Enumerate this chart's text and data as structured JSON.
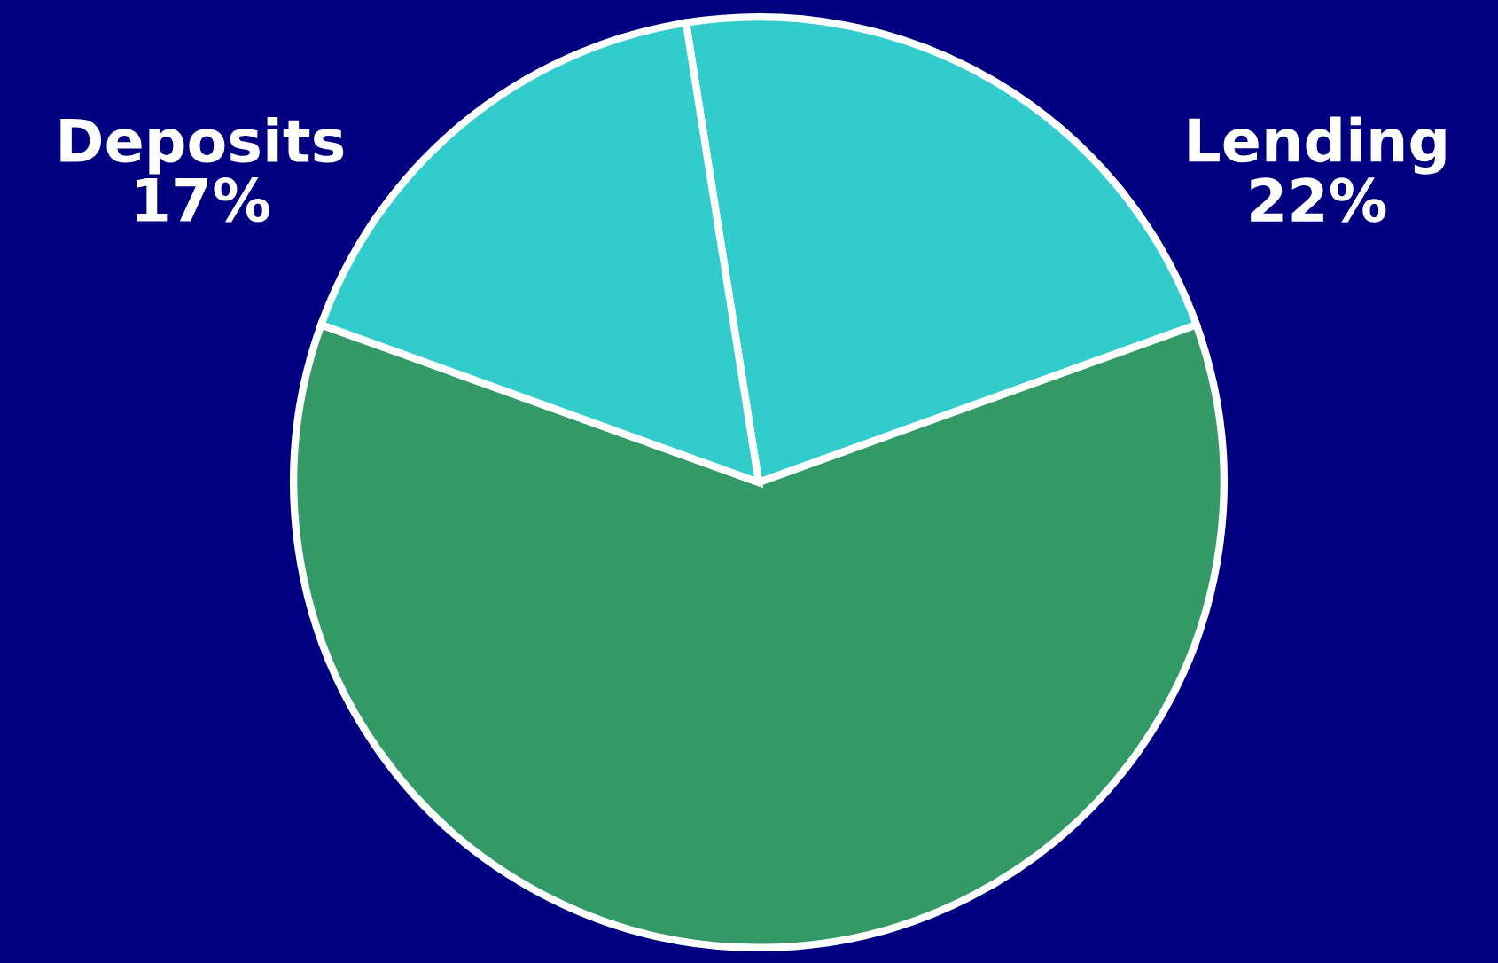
{
  "chart_data": {
    "type": "pie",
    "categories": [
      "Lending",
      null,
      "Deposits"
    ],
    "values": [
      22,
      61,
      17
    ],
    "value_labels": [
      "22%",
      null,
      "17%"
    ],
    "colors": [
      "#33cccc",
      "#339966",
      "#33cccc"
    ]
  }
}
